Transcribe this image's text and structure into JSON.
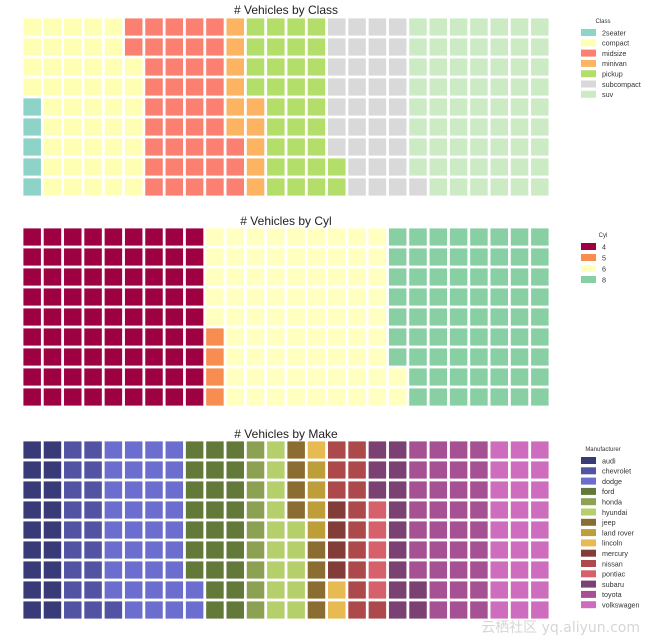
{
  "chart_data": [
    {
      "type": "waffle",
      "title": "# Vehicles by Class",
      "rows": 9,
      "columns": 26,
      "legend_title": "Class",
      "legend_position": "right",
      "categories": [
        "2seater",
        "compact",
        "midsize",
        "minivan",
        "pickup",
        "subcompact",
        "suv"
      ],
      "values": [
        5,
        47,
        41,
        11,
        33,
        35,
        62
      ],
      "colors": [
        "#8dd3c7",
        "#ffffb3",
        "#fb8072",
        "#fdb462",
        "#b3de69",
        "#d9d9d9",
        "#ccebc5"
      ]
    },
    {
      "type": "waffle",
      "title": "# Vehicles by Cyl",
      "rows": 9,
      "columns": 26,
      "legend_title": "Cyl",
      "legend_position": "right",
      "categories": [
        "4",
        "5",
        "6",
        "8"
      ],
      "values": [
        81,
        4,
        79,
        70
      ],
      "colors": [
        "#9e0142",
        "#f88d52",
        "#ffffbf",
        "#88d0a4"
      ]
    },
    {
      "type": "waffle",
      "title": "# Vehicles by Make",
      "rows": 9,
      "columns": 26,
      "legend_title": "Manufacturer",
      "legend_position": "right",
      "categories": [
        "audi",
        "chevrolet",
        "dodge",
        "ford",
        "honda",
        "hyundai",
        "jeep",
        "land rover",
        "lincoln",
        "mercury",
        "nissan",
        "pontiac",
        "subaru",
        "toyota",
        "volkswagen"
      ],
      "values": [
        18,
        19,
        37,
        25,
        9,
        14,
        8,
        4,
        3,
        4,
        13,
        5,
        14,
        34,
        27
      ],
      "colors": [
        "#393b79",
        "#5254a3",
        "#6b6ecf",
        "#637939",
        "#8ca252",
        "#b5cf6b",
        "#8c6d31",
        "#bd9e39",
        "#e7ba52",
        "#843c39",
        "#ad494a",
        "#d6616b",
        "#7b4173",
        "#a55194",
        "#ce6dbd"
      ]
    }
  ],
  "watermark": "云栖社区 yq.aliyun.com"
}
